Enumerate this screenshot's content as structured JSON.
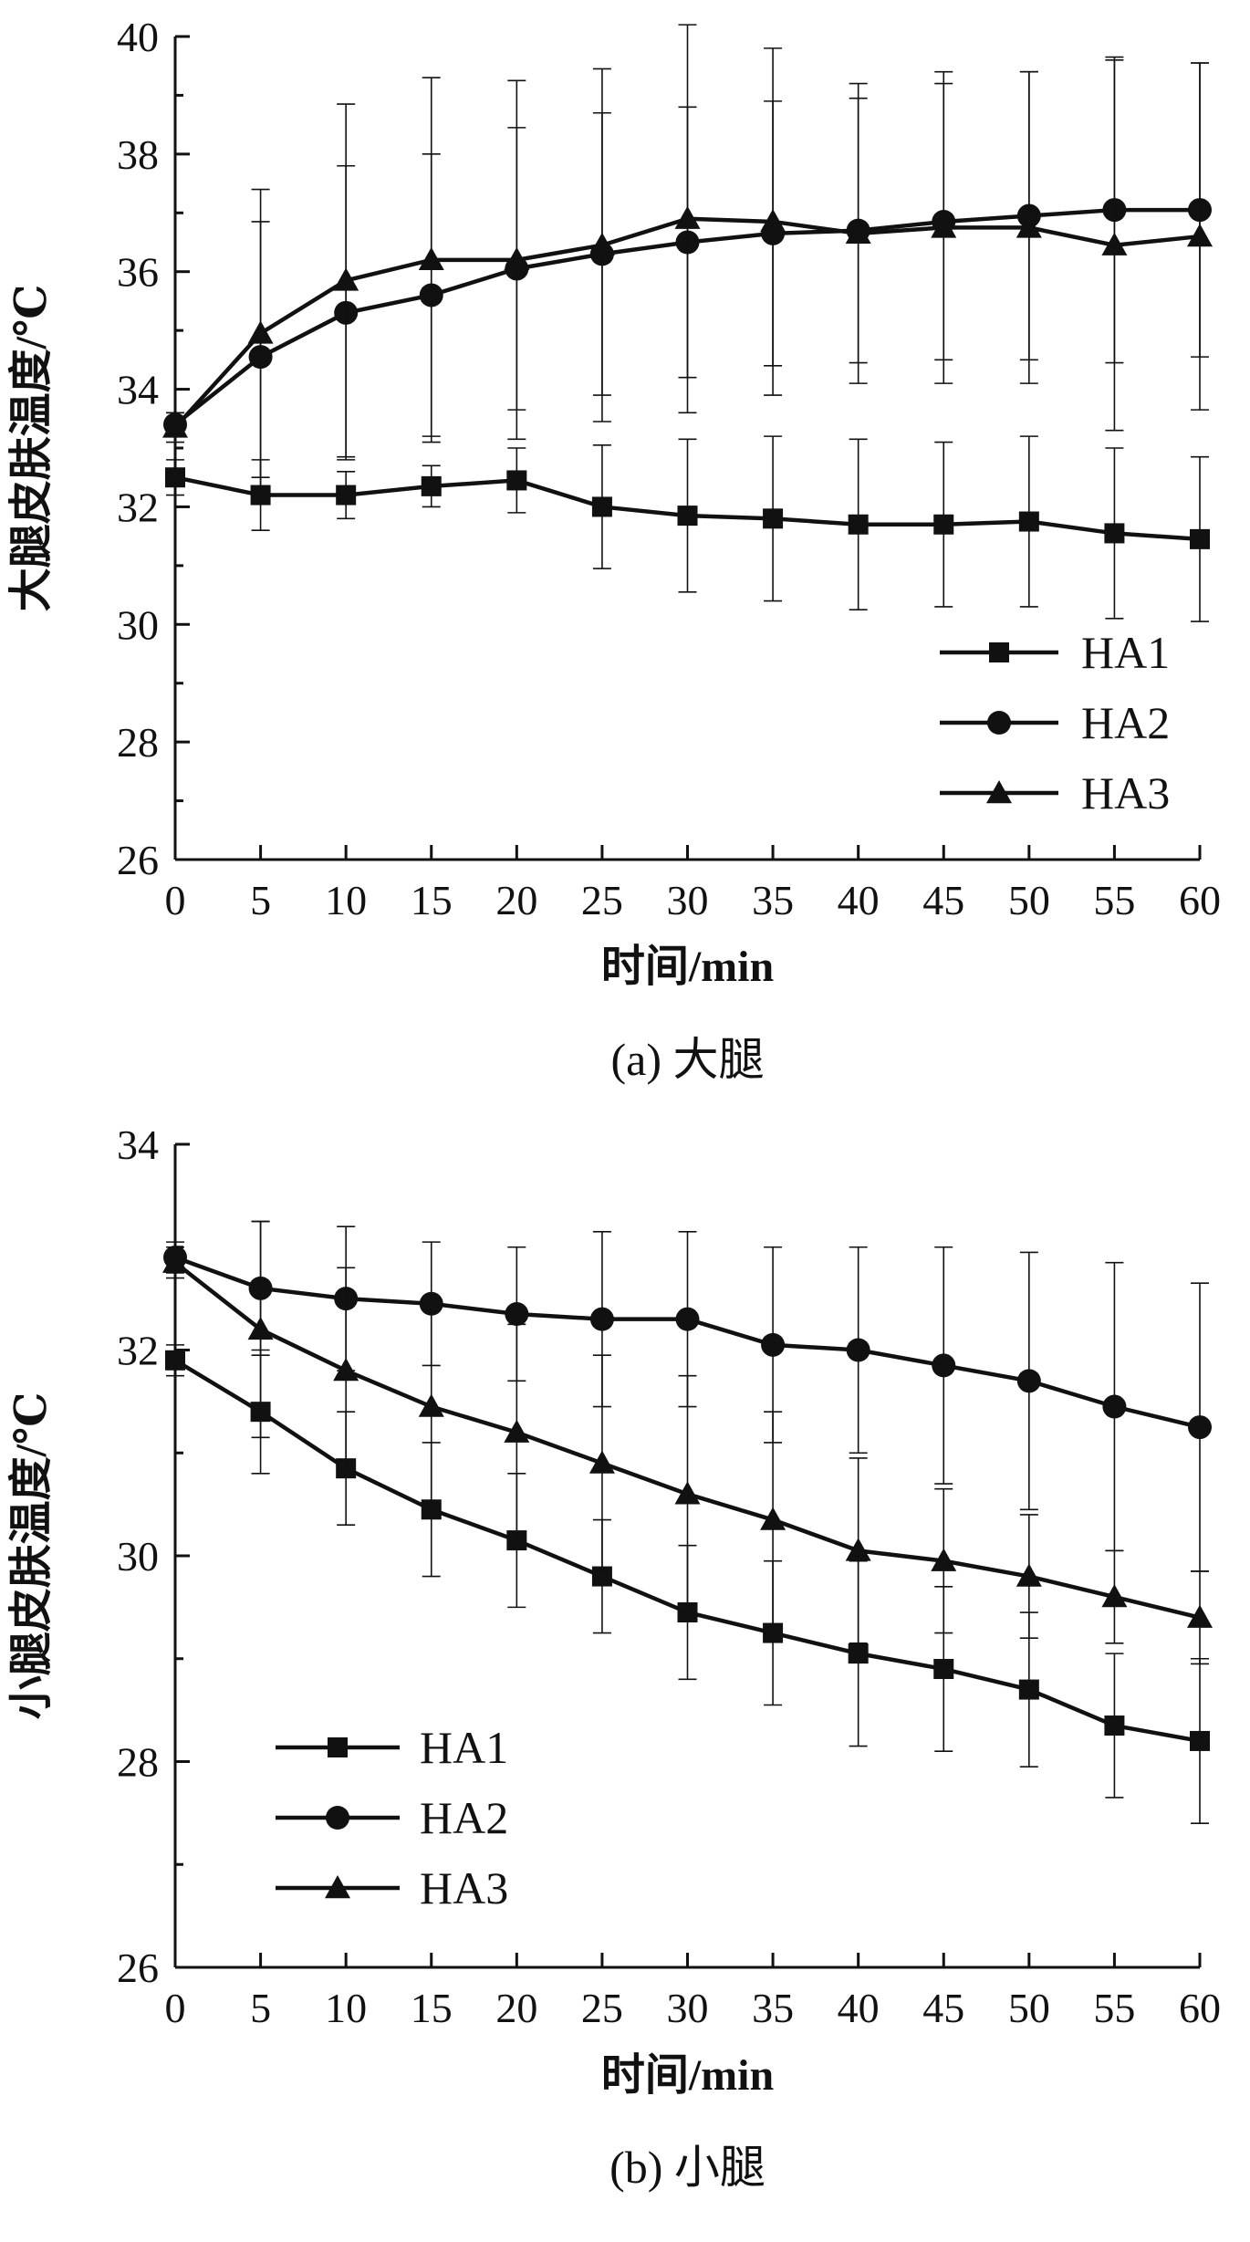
{
  "chart_data": [
    {
      "type": "line",
      "caption": "(a)  大腿",
      "xlabel": "时间/min",
      "ylabel": "大腿皮肤温度/℃",
      "x": [
        0,
        5,
        10,
        15,
        20,
        25,
        30,
        35,
        40,
        45,
        50,
        55,
        60
      ],
      "xticks": [
        "0",
        "5",
        "10",
        "15",
        "20",
        "25",
        "30",
        "35",
        "40",
        "45",
        "50",
        "55",
        "60"
      ],
      "xlim": [
        0,
        60
      ],
      "ylim": [
        26,
        40
      ],
      "yticks": [
        "26",
        "28",
        "30",
        "32",
        "34",
        "36",
        "38",
        "40"
      ],
      "legend_position": "lower-right",
      "grid": false,
      "error_bars": true,
      "series": [
        {
          "name": "HA1",
          "marker": "square",
          "values": [
            32.5,
            32.2,
            32.2,
            32.35,
            32.45,
            32.0,
            31.85,
            31.8,
            31.7,
            31.7,
            31.75,
            31.55,
            31.45
          ],
          "errors": [
            0.3,
            0.6,
            0.4,
            0.35,
            0.55,
            1.05,
            1.3,
            1.4,
            1.45,
            1.4,
            1.45,
            1.45,
            1.4
          ]
        },
        {
          "name": "HA2",
          "marker": "circle",
          "values": [
            33.4,
            34.55,
            35.3,
            35.6,
            36.05,
            36.3,
            36.5,
            36.65,
            36.7,
            36.85,
            36.95,
            37.05,
            37.05
          ],
          "errors": [
            0.2,
            2.3,
            2.5,
            2.4,
            2.4,
            2.4,
            2.3,
            2.25,
            2.25,
            2.35,
            2.45,
            2.6,
            2.5
          ]
        },
        {
          "name": "HA3",
          "marker": "triangle",
          "values": [
            33.35,
            34.95,
            35.85,
            36.2,
            36.2,
            36.45,
            36.9,
            36.85,
            36.65,
            36.75,
            36.75,
            36.45,
            36.6
          ],
          "errors": [
            0.25,
            2.45,
            3.0,
            3.1,
            3.05,
            3.0,
            3.3,
            2.95,
            2.55,
            2.65,
            2.65,
            3.15,
            2.95
          ]
        }
      ]
    },
    {
      "type": "line",
      "caption": "(b)  小腿",
      "xlabel": "时间/min",
      "ylabel": "小腿皮肤温度/℃",
      "x": [
        0,
        5,
        10,
        15,
        20,
        25,
        30,
        35,
        40,
        45,
        50,
        55,
        60
      ],
      "xticks": [
        "0",
        "5",
        "10",
        "15",
        "20",
        "25",
        "30",
        "35",
        "40",
        "45",
        "50",
        "55",
        "60"
      ],
      "xlim": [
        0,
        60
      ],
      "ylim": [
        26,
        34
      ],
      "yticks": [
        "26",
        "28",
        "30",
        "32",
        "34"
      ],
      "legend_position": "lower-left",
      "grid": false,
      "error_bars": true,
      "series": [
        {
          "name": "HA1",
          "marker": "square",
          "values": [
            31.9,
            31.4,
            30.85,
            30.45,
            30.15,
            29.8,
            29.45,
            29.25,
            29.05,
            28.9,
            28.7,
            28.35,
            28.2
          ],
          "errors": [
            0.15,
            0.6,
            0.55,
            0.65,
            0.65,
            0.55,
            0.65,
            0.7,
            0.9,
            0.8,
            0.75,
            0.7,
            0.8
          ]
        },
        {
          "name": "HA2",
          "marker": "circle",
          "values": [
            32.9,
            32.6,
            32.5,
            32.45,
            32.35,
            32.3,
            32.3,
            32.05,
            32.0,
            31.85,
            31.7,
            31.45,
            31.25
          ],
          "errors": [
            0.15,
            0.65,
            0.7,
            0.6,
            0.65,
            0.85,
            0.85,
            0.95,
            1.0,
            1.15,
            1.25,
            1.4,
            1.4
          ]
        },
        {
          "name": "HA3",
          "marker": "triangle",
          "values": [
            32.85,
            32.2,
            31.8,
            31.45,
            31.2,
            30.9,
            30.6,
            30.35,
            30.05,
            29.95,
            29.8,
            29.6,
            29.4
          ],
          "errors": [
            0.15,
            1.05,
            1.0,
            1.0,
            1.05,
            1.05,
            1.15,
            1.05,
            0.9,
            0.7,
            0.6,
            0.45,
            0.45
          ]
        }
      ]
    }
  ]
}
